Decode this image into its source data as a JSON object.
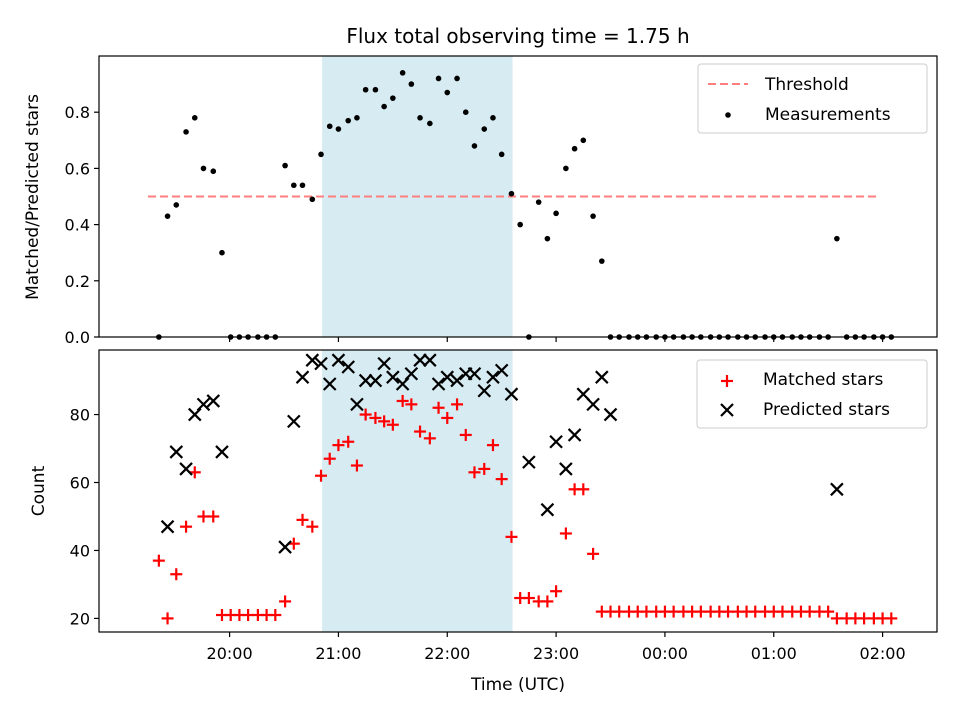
{
  "chart_data": [
    {
      "type": "scatter",
      "title": "Flux total observing time = 1.75 h",
      "ylabel": "Matched/Predicted stars",
      "xlabel": "",
      "ylim": [
        0,
        1.0
      ],
      "yticks": [
        "0.0",
        "0.2",
        "0.4",
        "0.6",
        "0.8"
      ],
      "x_unit": "hours (UTC, >24 = next day)",
      "xlim": [
        18.8,
        26.5
      ],
      "shaded_span": [
        20.85,
        22.6
      ],
      "legend": [
        "Threshold",
        "Measurements"
      ],
      "legend_position": "top-right",
      "threshold": {
        "name": "Threshold",
        "value": 0.5,
        "x_range": [
          19.25,
          25.95
        ],
        "color": "#ff7f7f"
      },
      "series": [
        {
          "name": "Measurements",
          "points": [
            [
              19.35,
              0.0
            ],
            [
              19.43,
              0.43
            ],
            [
              19.51,
              0.47
            ],
            [
              19.6,
              0.73
            ],
            [
              19.68,
              0.78
            ],
            [
              19.76,
              0.6
            ],
            [
              19.85,
              0.59
            ],
            [
              19.93,
              0.3
            ],
            [
              20.01,
              0.0
            ],
            [
              20.09,
              0.0
            ],
            [
              20.17,
              0.0
            ],
            [
              20.26,
              0.0
            ],
            [
              20.34,
              0.0
            ],
            [
              20.42,
              0.0
            ],
            [
              20.51,
              0.61
            ],
            [
              20.59,
              0.54
            ],
            [
              20.67,
              0.54
            ],
            [
              20.76,
              0.49
            ],
            [
              20.84,
              0.65
            ],
            [
              20.92,
              0.75
            ],
            [
              21.0,
              0.74
            ],
            [
              21.09,
              0.77
            ],
            [
              21.17,
              0.78
            ],
            [
              21.25,
              0.88
            ],
            [
              21.34,
              0.88
            ],
            [
              21.42,
              0.82
            ],
            [
              21.5,
              0.85
            ],
            [
              21.59,
              0.94
            ],
            [
              21.67,
              0.9
            ],
            [
              21.75,
              0.78
            ],
            [
              21.84,
              0.76
            ],
            [
              21.92,
              0.92
            ],
            [
              22.0,
              0.87
            ],
            [
              22.09,
              0.92
            ],
            [
              22.17,
              0.8
            ],
            [
              22.25,
              0.68
            ],
            [
              22.34,
              0.74
            ],
            [
              22.42,
              0.78
            ],
            [
              22.5,
              0.65
            ],
            [
              22.59,
              0.51
            ],
            [
              22.67,
              0.4
            ],
            [
              22.75,
              0.0
            ],
            [
              22.84,
              0.48
            ],
            [
              22.92,
              0.35
            ],
            [
              23.0,
              0.44
            ],
            [
              23.09,
              0.6
            ],
            [
              23.17,
              0.67
            ],
            [
              23.25,
              0.7
            ],
            [
              23.34,
              0.43
            ],
            [
              23.42,
              0.27
            ],
            [
              23.5,
              0.0
            ],
            [
              23.58,
              0.0
            ],
            [
              23.67,
              0.0
            ],
            [
              23.75,
              0.0
            ],
            [
              23.83,
              0.0
            ],
            [
              23.92,
              0.0
            ],
            [
              24.0,
              0.0
            ],
            [
              24.08,
              0.0
            ],
            [
              24.17,
              0.0
            ],
            [
              24.25,
              0.0
            ],
            [
              24.33,
              0.0
            ],
            [
              24.42,
              0.0
            ],
            [
              24.5,
              0.0
            ],
            [
              24.58,
              0.0
            ],
            [
              24.67,
              0.0
            ],
            [
              24.75,
              0.0
            ],
            [
              24.83,
              0.0
            ],
            [
              24.92,
              0.0
            ],
            [
              25.0,
              0.0
            ],
            [
              25.08,
              0.0
            ],
            [
              25.17,
              0.0
            ],
            [
              25.25,
              0.0
            ],
            [
              25.33,
              0.0
            ],
            [
              25.42,
              0.0
            ],
            [
              25.5,
              0.0
            ],
            [
              25.58,
              0.35
            ],
            [
              25.67,
              0.0
            ],
            [
              25.75,
              0.0
            ],
            [
              25.83,
              0.0
            ],
            [
              25.92,
              0.0
            ],
            [
              26.0,
              0.0
            ],
            [
              26.08,
              0.0
            ]
          ]
        }
      ]
    },
    {
      "type": "scatter",
      "title": "",
      "ylabel": "Count",
      "xlabel": "Time (UTC)",
      "ylim": [
        16,
        99
      ],
      "yticks": [
        "20",
        "40",
        "60",
        "80"
      ],
      "xticks": [
        "20:00",
        "21:00",
        "22:00",
        "23:00",
        "00:00",
        "01:00",
        "02:00"
      ],
      "x_unit": "hours (UTC, >24 = next day)",
      "xlim": [
        18.8,
        26.5
      ],
      "shaded_span": [
        20.85,
        22.6
      ],
      "legend": [
        "Matched stars",
        "Predicted stars"
      ],
      "legend_position": "top-right",
      "series": [
        {
          "name": "Matched stars",
          "color": "#ff0000",
          "points": [
            [
              19.35,
              37
            ],
            [
              19.43,
              20
            ],
            [
              19.51,
              33
            ],
            [
              19.6,
              47
            ],
            [
              19.68,
              63
            ],
            [
              19.76,
              50
            ],
            [
              19.85,
              50
            ],
            [
              19.93,
              21
            ],
            [
              20.01,
              21
            ],
            [
              20.09,
              21
            ],
            [
              20.17,
              21
            ],
            [
              20.26,
              21
            ],
            [
              20.34,
              21
            ],
            [
              20.42,
              21
            ],
            [
              20.51,
              25
            ],
            [
              20.59,
              42
            ],
            [
              20.67,
              49
            ],
            [
              20.76,
              47
            ],
            [
              20.84,
              62
            ],
            [
              20.92,
              67
            ],
            [
              21.0,
              71
            ],
            [
              21.09,
              72
            ],
            [
              21.17,
              65
            ],
            [
              21.25,
              80
            ],
            [
              21.34,
              79
            ],
            [
              21.42,
              78
            ],
            [
              21.5,
              77
            ],
            [
              21.59,
              84
            ],
            [
              21.67,
              83
            ],
            [
              21.75,
              75
            ],
            [
              21.84,
              73
            ],
            [
              21.92,
              82
            ],
            [
              22.0,
              79
            ],
            [
              22.09,
              83
            ],
            [
              22.17,
              74
            ],
            [
              22.25,
              63
            ],
            [
              22.34,
              64
            ],
            [
              22.42,
              71
            ],
            [
              22.5,
              61
            ],
            [
              22.59,
              44
            ],
            [
              22.67,
              26
            ],
            [
              22.75,
              26
            ],
            [
              22.84,
              25
            ],
            [
              22.92,
              25
            ],
            [
              23.0,
              28
            ],
            [
              23.09,
              45
            ],
            [
              23.17,
              58
            ],
            [
              23.25,
              58
            ],
            [
              23.34,
              39
            ],
            [
              23.42,
              22
            ],
            [
              23.5,
              22
            ],
            [
              23.58,
              22
            ],
            [
              23.67,
              22
            ],
            [
              23.75,
              22
            ],
            [
              23.83,
              22
            ],
            [
              23.92,
              22
            ],
            [
              24.0,
              22
            ],
            [
              24.08,
              22
            ],
            [
              24.17,
              22
            ],
            [
              24.25,
              22
            ],
            [
              24.33,
              22
            ],
            [
              24.42,
              22
            ],
            [
              24.5,
              22
            ],
            [
              24.58,
              22
            ],
            [
              24.67,
              22
            ],
            [
              24.75,
              22
            ],
            [
              24.83,
              22
            ],
            [
              24.92,
              22
            ],
            [
              25.0,
              22
            ],
            [
              25.08,
              22
            ],
            [
              25.17,
              22
            ],
            [
              25.25,
              22
            ],
            [
              25.33,
              22
            ],
            [
              25.42,
              22
            ],
            [
              25.5,
              22
            ],
            [
              25.58,
              20
            ],
            [
              25.67,
              20
            ],
            [
              25.75,
              20
            ],
            [
              25.83,
              20
            ],
            [
              25.92,
              20
            ],
            [
              26.0,
              20
            ],
            [
              26.08,
              20
            ]
          ]
        },
        {
          "name": "Predicted stars",
          "color": "#000000",
          "points": [
            [
              19.43,
              47
            ],
            [
              19.51,
              69
            ],
            [
              19.6,
              64
            ],
            [
              19.68,
              80
            ],
            [
              19.76,
              83
            ],
            [
              19.85,
              84
            ],
            [
              19.93,
              69
            ],
            [
              20.51,
              41
            ],
            [
              20.59,
              78
            ],
            [
              20.67,
              91
            ],
            [
              20.76,
              96
            ],
            [
              20.84,
              95
            ],
            [
              20.92,
              89
            ],
            [
              21.0,
              96
            ],
            [
              21.09,
              94
            ],
            [
              21.17,
              83
            ],
            [
              21.25,
              90
            ],
            [
              21.34,
              90
            ],
            [
              21.42,
              95
            ],
            [
              21.5,
              91
            ],
            [
              21.59,
              89
            ],
            [
              21.67,
              92
            ],
            [
              21.75,
              96
            ],
            [
              21.84,
              96
            ],
            [
              21.92,
              89
            ],
            [
              22.0,
              91
            ],
            [
              22.09,
              90
            ],
            [
              22.17,
              92
            ],
            [
              22.25,
              92
            ],
            [
              22.34,
              87
            ],
            [
              22.42,
              91
            ],
            [
              22.5,
              93
            ],
            [
              22.59,
              86
            ],
            [
              22.75,
              66
            ],
            [
              22.92,
              52
            ],
            [
              23.0,
              72
            ],
            [
              23.09,
              64
            ],
            [
              23.17,
              74
            ],
            [
              23.25,
              86
            ],
            [
              23.34,
              83
            ],
            [
              23.42,
              91
            ],
            [
              23.5,
              80
            ],
            [
              25.58,
              58
            ]
          ]
        }
      ]
    }
  ]
}
